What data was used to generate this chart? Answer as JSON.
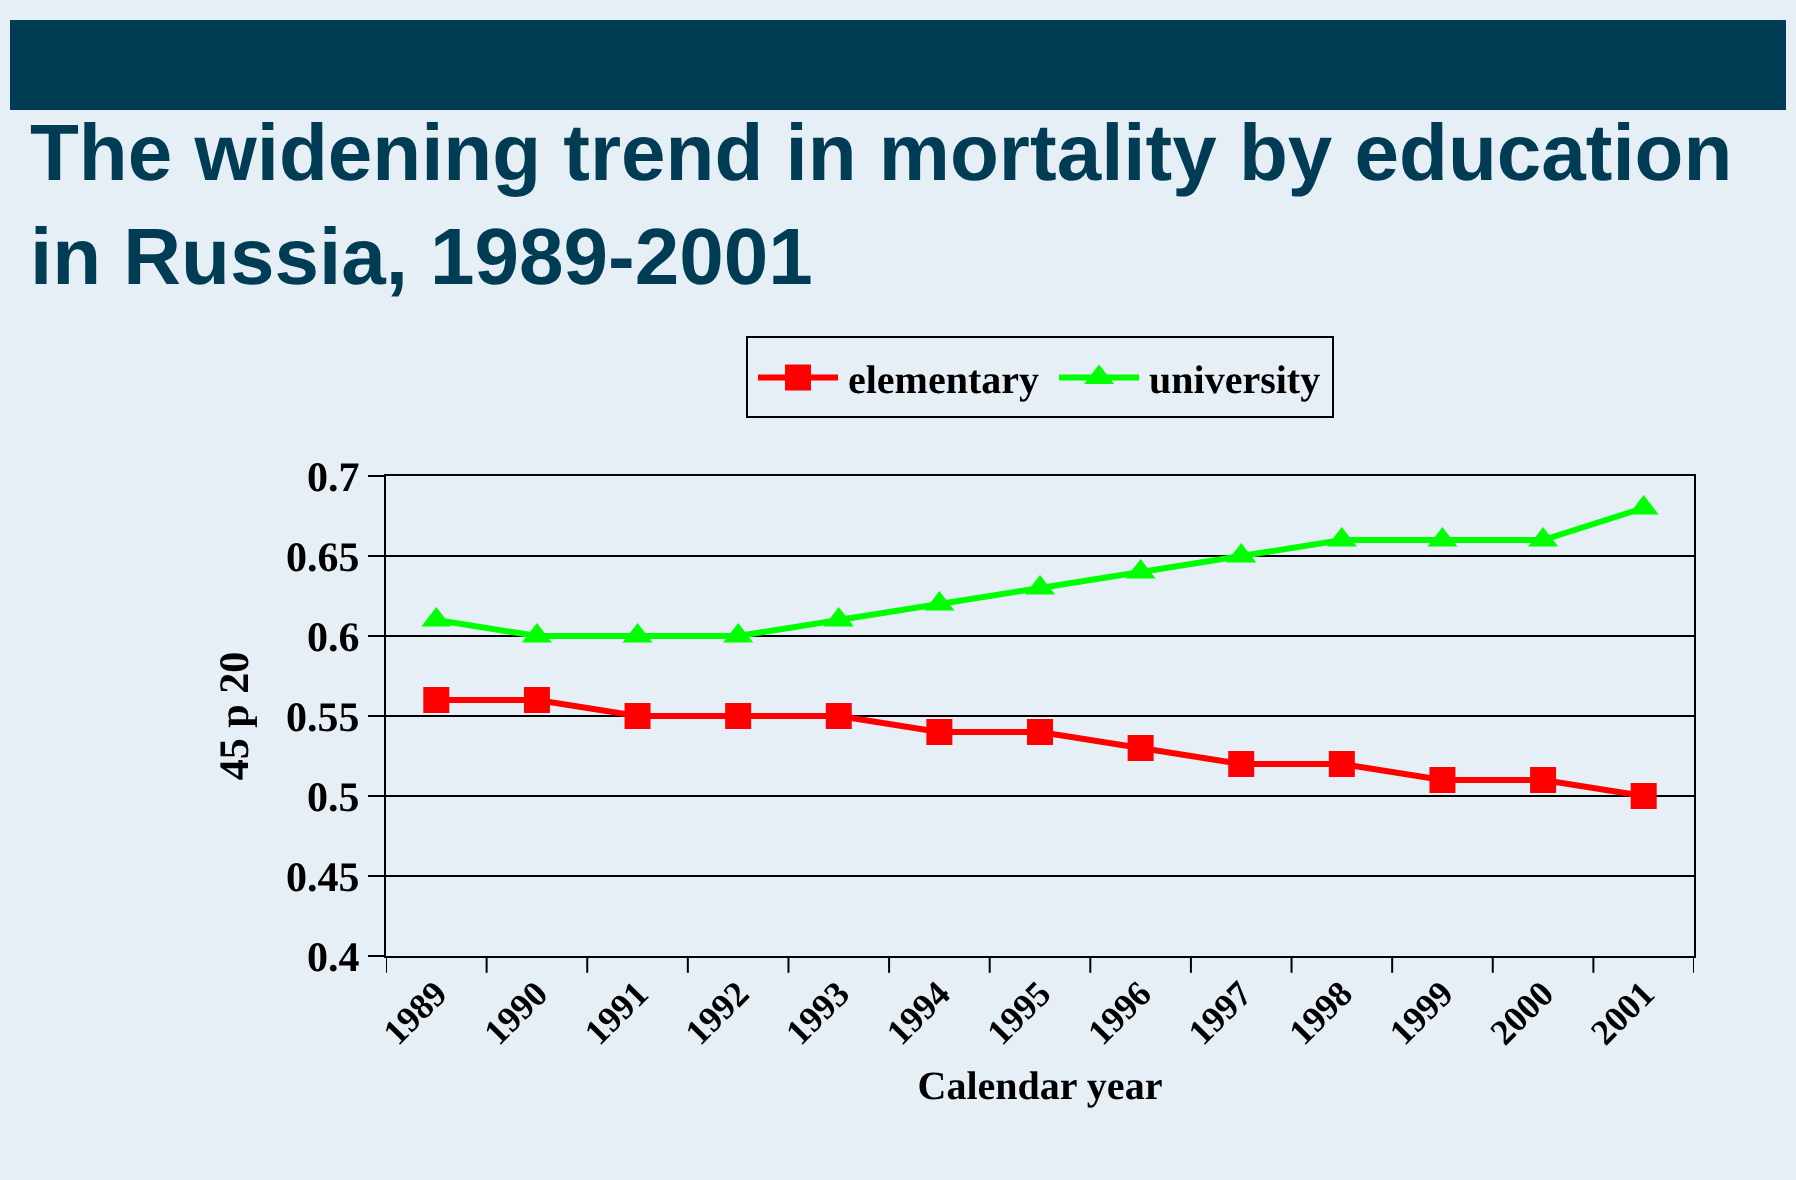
{
  "chart_data": {
    "type": "line",
    "title": "The widening trend in mortality by education in Russia, 1989-2001",
    "xlabel": "Calendar year",
    "ylabel": "45 p 20",
    "categories": [
      "1989",
      "1990",
      "1991",
      "1992",
      "1993",
      "1994",
      "1995",
      "1996",
      "1997",
      "1998",
      "1999",
      "2000",
      "2001"
    ],
    "series": [
      {
        "name": "elementary",
        "color": "#ff0000",
        "marker": "square",
        "values": [
          0.56,
          0.56,
          0.55,
          0.55,
          0.55,
          0.54,
          0.54,
          0.53,
          0.52,
          0.52,
          0.51,
          0.51,
          0.5
        ]
      },
      {
        "name": "university",
        "color": "#00ff00",
        "marker": "triangle",
        "values": [
          0.61,
          0.6,
          0.6,
          0.6,
          0.61,
          0.62,
          0.63,
          0.64,
          0.65,
          0.66,
          0.66,
          0.66,
          0.68
        ]
      }
    ],
    "ylim": [
      0.4,
      0.7
    ],
    "yticks": [
      0.4,
      0.45,
      0.5,
      0.55,
      0.6,
      0.65,
      0.7
    ],
    "grid": "y",
    "legend": "top",
    "line_style": "solid"
  }
}
